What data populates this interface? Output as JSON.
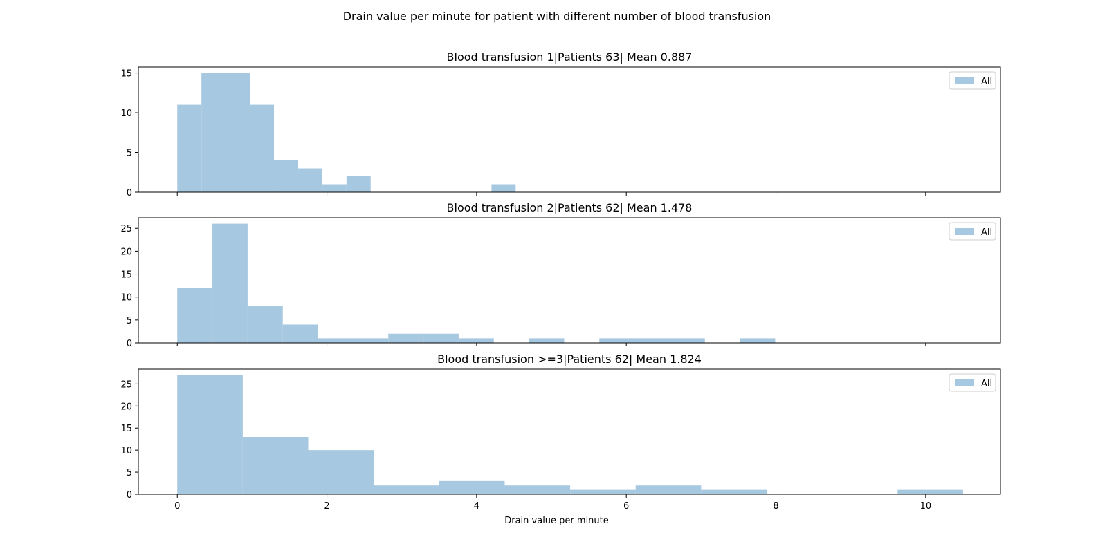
{
  "suptitle": "Drain value per minute for patient with different number of blood transfusion",
  "xlabel": "Drain value per minute",
  "colors": {
    "bar": "#a6c8e0",
    "axis": "#000000",
    "legend_border": "#cccccc"
  },
  "chart_data": [
    {
      "type": "bar",
      "title": "Blood transfusion 1|Patients 63| Mean 0.887",
      "legend": [
        "All"
      ],
      "legend_position": "top-right",
      "grid": false,
      "xlim": [
        -0.52,
        11.0
      ],
      "ylim": [
        0,
        15.75
      ],
      "yticks": [
        0,
        5,
        10,
        15
      ],
      "xticks": [
        0,
        2,
        4,
        6,
        8,
        10
      ],
      "show_xtick_labels": false,
      "bin_width": 0.323,
      "bin_start": 0,
      "values": [
        11,
        15,
        15,
        11,
        4,
        3,
        1,
        2,
        0,
        0,
        0,
        0,
        0,
        1
      ]
    },
    {
      "type": "bar",
      "title": "Blood transfusion 2|Patients 62| Mean 1.478",
      "legend": [
        "All"
      ],
      "legend_position": "top-right",
      "grid": false,
      "xlim": [
        -0.52,
        11.0
      ],
      "ylim": [
        0,
        27.3
      ],
      "yticks": [
        0,
        5,
        10,
        15,
        20,
        25
      ],
      "xticks": [
        0,
        2,
        4,
        6,
        8,
        10
      ],
      "show_xtick_labels": false,
      "bin_width": 0.47,
      "bin_start": 0,
      "values": [
        12,
        26,
        8,
        4,
        1,
        1,
        2,
        2,
        1,
        0,
        1,
        0,
        1,
        1,
        1,
        0,
        1
      ]
    },
    {
      "type": "bar",
      "title": "Blood transfusion >=3|Patients 62| Mean 1.824",
      "legend": [
        "All"
      ],
      "legend_position": "top-right",
      "grid": false,
      "xlim": [
        -0.52,
        11.0
      ],
      "ylim": [
        0,
        28.35
      ],
      "yticks": [
        0,
        5,
        10,
        15,
        20,
        25
      ],
      "xticks": [
        0,
        2,
        4,
        6,
        8,
        10
      ],
      "xtick_labels": [
        "0",
        "2",
        "4",
        "6",
        "8",
        "10"
      ],
      "show_xtick_labels": true,
      "bin_width": 0.875,
      "bin_start": 0,
      "values": [
        27,
        13,
        10,
        2,
        3,
        2,
        1,
        2,
        1,
        0,
        0,
        1
      ]
    }
  ]
}
